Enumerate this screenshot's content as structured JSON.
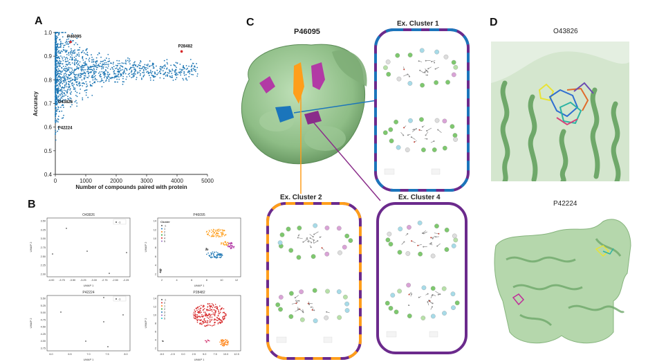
{
  "panels": {
    "a": "A",
    "b": "B",
    "c": "C",
    "d": "D"
  },
  "panel_a": {
    "ylabel": "Accuracy",
    "xlabel": "Number of compounds paired with protein",
    "yticks": [
      "0.4",
      "0.5",
      "0.6",
      "0.7",
      "0.8",
      "0.9",
      "1.0"
    ],
    "xticks": [
      "0",
      "1000",
      "2000",
      "3000",
      "4000",
      "5000"
    ],
    "annotations": [
      {
        "label": "P46095",
        "x": 500,
        "y": 0.96,
        "highlight": true
      },
      {
        "label": "P28482",
        "x": 4150,
        "y": 0.92,
        "highlight": true
      },
      {
        "label": "O43826",
        "x": 40,
        "y": 0.71,
        "highlight": false
      },
      {
        "label": "P42224",
        "x": 40,
        "y": 0.6,
        "highlight": false
      }
    ]
  },
  "panel_b": {
    "plots": [
      {
        "title": "O43826",
        "xlabel": "UMAP 1",
        "ylabel": "UMAP 2",
        "yticks": [
          "3.50",
          "3.25",
          "3.00",
          "2.75",
          "2.50",
          "2.25",
          "2.00"
        ],
        "xticks": [
          "-4.00",
          "-3.75",
          "-3.50",
          "-3.25",
          "-3.00",
          "-2.75",
          "-2.50",
          "-2.25"
        ],
        "legend": [
          "-1"
        ]
      },
      {
        "title": "P46095",
        "xlabel": "UMAP 1",
        "ylabel": "UMAP 2",
        "yticks": [
          "14",
          "12",
          "10",
          "8",
          "6",
          "4",
          "2"
        ],
        "xticks": [
          "2",
          "4",
          "6",
          "8",
          "10",
          "12"
        ],
        "legend_title": "Cluster",
        "legend": [
          "-1",
          "1",
          "2",
          "3",
          "4",
          "5"
        ]
      },
      {
        "title": "P42224",
        "xlabel": "UMAP 1",
        "ylabel": "UMAP 2",
        "yticks": [
          "5.50",
          "5.25",
          "5.00",
          "4.75",
          "4.50",
          "4.25",
          "4.00",
          "3.75"
        ],
        "xticks": [
          "6.0",
          "6.5",
          "7.0",
          "7.5",
          "8.0"
        ],
        "legend": [
          "-1"
        ]
      },
      {
        "title": "P28482",
        "xlabel": "UMAP 1",
        "ylabel": "UMAP 2",
        "yticks": [
          "14",
          "12",
          "10",
          "8",
          "6",
          "4",
          "2"
        ],
        "xticks": [
          "-5.0",
          "-2.5",
          "0.0",
          "2.5",
          "5.0",
          "7.5",
          "10.0",
          "12.5"
        ],
        "legend": [
          "-1",
          "0",
          "1",
          "2",
          "3",
          "4",
          "5"
        ]
      }
    ]
  },
  "panel_c": {
    "protein_title": "P46095",
    "cluster1": "Ex. Cluster 1",
    "cluster2": "Ex. Cluster 2",
    "cluster4": "Ex. Cluster 4"
  },
  "panel_d": {
    "top_title": "O43826",
    "bottom_title": "P42224"
  },
  "colors": {
    "scatter": "#1f77b4",
    "highlight": "#d62728",
    "orange": "#ff9e1b",
    "purple": "#6b2a8c",
    "blue": "#1b75bb",
    "protein_green": "#8fbf8f",
    "magenta": "#b23aa5"
  }
}
